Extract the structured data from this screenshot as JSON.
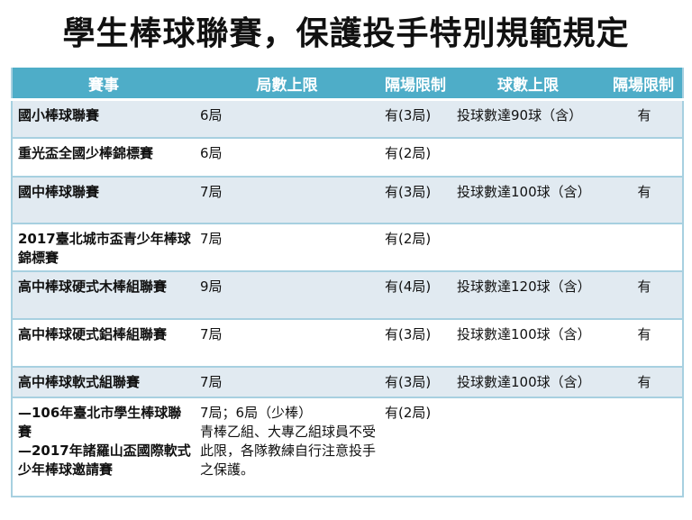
{
  "title": "學生棒球聯賽，保護投手特別規範規定",
  "header": [
    "賽事",
    "局數上限",
    "隔場限制",
    "球數上限",
    "隔場限制"
  ],
  "rows": [
    {
      "event": "國小棒球聯賽",
      "innings": "6局",
      "rest": "有(3局)",
      "pitches": "投球數達90球（含）",
      "rest2": "有"
    },
    {
      "event": "重光盃全國少棒錦標賽",
      "innings": "6局",
      "rest": "有(2局)",
      "pitches": "",
      "rest2": ""
    },
    {
      "event": "國中棒球聯賽",
      "innings": "7局",
      "rest": "有(3局)",
      "pitches": "投球數達100球（含）",
      "rest2": "有"
    },
    {
      "event": "2017臺北城市盃青少年棒球錦標賽",
      "innings": "7局",
      "rest": "有(2局)",
      "pitches": "",
      "rest2": ""
    },
    {
      "event": "高中棒球硬式木棒組聯賽",
      "innings": "9局",
      "rest": "有(4局)",
      "pitches": "投球數達120球（含）",
      "rest2": "有"
    },
    {
      "event": "高中棒球硬式鋁棒組聯賽",
      "innings": "7局",
      "rest": "有(3局)",
      "pitches": "投球數達100球（含）",
      "rest2": "有"
    },
    {
      "event": "高中棒球軟式組聯賽",
      "innings": "7局",
      "rest": "有(3局)",
      "pitches": "投球數達100球（含）",
      "rest2": "有"
    },
    {
      "event": "—106年臺北市學生棒球聯賽\n—2017年諸羅山盃國際軟式少年棒球邀請賽",
      "innings": "7局；6局（少棒）\n青棒乙組、大專乙組球員不受此限，各隊教練自行注意投手之保護。",
      "rest": "有(2局)",
      "pitches": "",
      "rest2": ""
    }
  ]
}
